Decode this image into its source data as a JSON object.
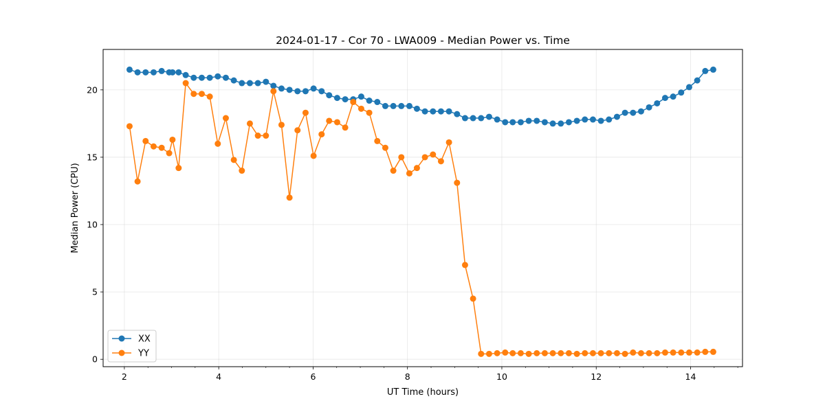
{
  "chart_data": {
    "type": "line",
    "title": "2024-01-17 - Cor 70 - LWA009 - Median Power vs. Time",
    "xlabel": "UT Time (hours)",
    "ylabel": "Median Power (CPU)",
    "xlim": [
      1.55,
      15.1
    ],
    "ylim": [
      -0.55,
      23.0
    ],
    "xticks": [
      2,
      4,
      6,
      8,
      10,
      12,
      14
    ],
    "xtick_labels": [
      "2",
      "4",
      "6",
      "8",
      "10",
      "12",
      "14"
    ],
    "yticks": [
      0,
      5,
      10,
      15,
      20
    ],
    "ytick_labels": [
      "0",
      "5",
      "10",
      "15",
      "20"
    ],
    "x_minor_tick_step": 0.5,
    "grid": true,
    "legend_position": "lower-left",
    "series": [
      {
        "name": "XX",
        "color": "#1f77b4",
        "x": [
          2.11,
          2.28,
          2.45,
          2.62,
          2.79,
          2.95,
          3.02,
          3.15,
          3.3,
          3.47,
          3.64,
          3.81,
          3.98,
          4.15,
          4.32,
          4.49,
          4.66,
          4.83,
          5.0,
          5.16,
          5.33,
          5.5,
          5.67,
          5.84,
          6.01,
          6.18,
          6.34,
          6.51,
          6.68,
          6.85,
          7.02,
          7.19,
          7.36,
          7.53,
          7.7,
          7.87,
          8.04,
          8.2,
          8.37,
          8.54,
          8.71,
          8.88,
          9.05,
          9.22,
          9.39,
          9.56,
          9.73,
          9.9,
          10.07,
          10.23,
          10.4,
          10.57,
          10.74,
          10.91,
          11.08,
          11.25,
          11.42,
          11.59,
          11.76,
          11.93,
          12.1,
          12.27,
          12.44,
          12.61,
          12.78,
          12.95,
          13.12,
          13.29,
          13.46,
          13.63,
          13.8,
          13.97,
          14.14,
          14.31,
          14.48
        ],
        "values": [
          21.5,
          21.3,
          21.3,
          21.3,
          21.4,
          21.3,
          21.3,
          21.3,
          21.1,
          20.9,
          20.9,
          20.9,
          21.0,
          20.9,
          20.7,
          20.5,
          20.5,
          20.5,
          20.6,
          20.3,
          20.1,
          20.0,
          19.9,
          19.9,
          20.1,
          19.9,
          19.6,
          19.4,
          19.3,
          19.3,
          19.5,
          19.2,
          19.1,
          18.8,
          18.8,
          18.8,
          18.8,
          18.6,
          18.4,
          18.4,
          18.4,
          18.4,
          18.2,
          17.9,
          17.9,
          17.9,
          18.0,
          17.8,
          17.6,
          17.6,
          17.6,
          17.7,
          17.7,
          17.6,
          17.5,
          17.5,
          17.6,
          17.7,
          17.8,
          17.8,
          17.7,
          17.8,
          18.0,
          18.3,
          18.3,
          18.4,
          18.7,
          19.0,
          19.4,
          19.5,
          19.8,
          20.2,
          20.7,
          21.4,
          21.5
        ]
      },
      {
        "name": "YY",
        "color": "#ff7f0e",
        "x": [
          2.11,
          2.28,
          2.45,
          2.62,
          2.79,
          2.95,
          3.02,
          3.15,
          3.3,
          3.47,
          3.64,
          3.81,
          3.98,
          4.15,
          4.32,
          4.49,
          4.66,
          4.83,
          5.0,
          5.16,
          5.33,
          5.5,
          5.67,
          5.84,
          6.01,
          6.18,
          6.34,
          6.51,
          6.68,
          6.85,
          7.02,
          7.19,
          7.36,
          7.53,
          7.7,
          7.87,
          8.04,
          8.2,
          8.37,
          8.54,
          8.71,
          8.88,
          9.05,
          9.22,
          9.39,
          9.56,
          9.73,
          9.9,
          10.07,
          10.23,
          10.4,
          10.57,
          10.74,
          10.91,
          11.08,
          11.25,
          11.42,
          11.59,
          11.76,
          11.93,
          12.1,
          12.27,
          12.44,
          12.61,
          12.78,
          12.95,
          13.12,
          13.29,
          13.46,
          13.63,
          13.8,
          13.97,
          14.14,
          14.31,
          14.48
        ],
        "values": [
          17.3,
          13.2,
          16.2,
          15.8,
          15.7,
          15.3,
          16.3,
          14.2,
          20.5,
          19.7,
          19.7,
          19.5,
          16.0,
          17.9,
          14.8,
          14.0,
          17.5,
          16.6,
          16.6,
          19.9,
          17.4,
          12.0,
          17.0,
          18.3,
          15.1,
          16.7,
          17.7,
          17.6,
          17.2,
          19.1,
          18.6,
          18.3,
          16.2,
          15.7,
          14.0,
          15.0,
          13.8,
          14.2,
          15.0,
          15.2,
          14.7,
          16.1,
          13.1,
          7.0,
          4.5,
          0.4,
          0.4,
          0.45,
          0.5,
          0.45,
          0.45,
          0.4,
          0.45,
          0.45,
          0.45,
          0.45,
          0.45,
          0.4,
          0.45,
          0.45,
          0.45,
          0.45,
          0.45,
          0.4,
          0.5,
          0.45,
          0.45,
          0.45,
          0.5,
          0.5,
          0.5,
          0.5,
          0.5,
          0.55,
          0.55
        ]
      }
    ]
  }
}
